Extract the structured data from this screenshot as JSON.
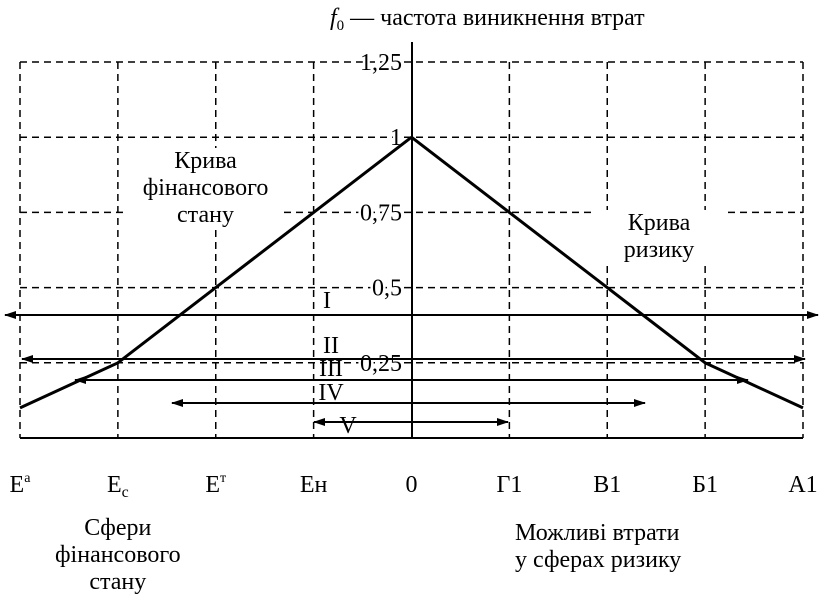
{
  "chart_data": {
    "type": "line",
    "y_label": {
      "var": "f",
      "sub": "0",
      "text": " — частота виникнення втрат"
    },
    "categories": [
      {
        "base": "Е",
        "sup": "а"
      },
      {
        "base": "Е",
        "sub": "с"
      },
      {
        "base": "Е",
        "sup": "т"
      },
      {
        "base": "Ен"
      },
      {
        "base": "0"
      },
      {
        "base": "Г1"
      },
      {
        "base": "В1"
      },
      {
        "base": "Б1"
      },
      {
        "base": "А1"
      }
    ],
    "series": [
      {
        "name": "Крива фінансового стану",
        "color": "#000000",
        "values": [
          0.1,
          0.25,
          0.5,
          0.75,
          1,
          null,
          null,
          null,
          null
        ]
      },
      {
        "name": "Крива ризику",
        "color": "#000000",
        "values": [
          null,
          null,
          null,
          null,
          1,
          0.75,
          0.5,
          0.25,
          0.1
        ]
      }
    ],
    "ylim": [
      0,
      1.25
    ],
    "yticks": [
      {
        "value": 0.25,
        "label": "0,25"
      },
      {
        "value": 0.5,
        "label": "0,5"
      },
      {
        "value": 0.75,
        "label": "0,75"
      },
      1,
      {
        "value": 1.25,
        "label": "1,25"
      }
    ],
    "grid": true,
    "ranges": [
      "I",
      "II",
      "III",
      "IV",
      "V"
    ],
    "annotations": [
      [
        "Сфери",
        "фінансового",
        "стану"
      ],
      [
        "Можливі втрати",
        "у сферах ризику"
      ]
    ]
  }
}
